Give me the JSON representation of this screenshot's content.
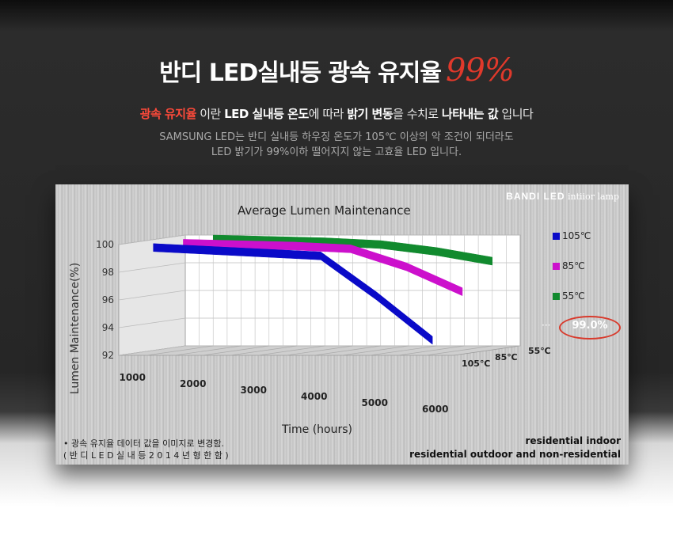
{
  "header": {
    "title": "반디 LED실내등 광속 유지율",
    "title_accent": "99%",
    "sub_red": "광속 유지율",
    "sub_t1": " 이란 ",
    "sub_b1": "LED 실내등 온도",
    "sub_t2": "에 따라 ",
    "sub_b2": "밝기 변동",
    "sub_t3": "을 수치로 ",
    "sub_b3": "나타내는 값",
    "sub_t4": " 입니다",
    "desc_line1": "SAMSUNG LED는 반디 실내등 하우징 온도가 105℃ 이상의 악 조건이 되더라도",
    "desc_line2": "LED 밝기가 99%이하 떨어지지 않는 고효율 LED 입니다."
  },
  "panel": {
    "brand_bold": "BANDI LED",
    "brand_rest": " intiior lamp",
    "highlight": "99.0%",
    "note_line1": "• 광속 유지율 데이터 값을 이미지로 변경함.",
    "note_line2": "( 반 디  L E D 실 내 등  2 0 1 4 년 형  한 함 )",
    "res_line1": "residential indoor",
    "res_line2": "residential outdoor and non-residential"
  },
  "chart_data": {
    "type": "line",
    "title": "Average Lumen Maintenance",
    "xlabel": "Time (hours)",
    "ylabel": "Lumen Maintenance(%)",
    "x": [
      1000,
      2000,
      3000,
      4000,
      5000,
      6000
    ],
    "ylim": [
      92,
      100
    ],
    "yticks": [
      100,
      98,
      96,
      94,
      92
    ],
    "depth_labels": [
      "55℃",
      "85℃",
      "105℃"
    ],
    "grid": true,
    "legend_position": "right",
    "series": [
      {
        "name": "105℃",
        "color": "#0a0ac8",
        "values": [
          100,
          99.8,
          99.6,
          99.4,
          96.5,
          93.3
        ]
      },
      {
        "name": "85℃",
        "color": "#cc10cc",
        "values": [
          100,
          99.9,
          99.8,
          99.6,
          98.3,
          96.5
        ]
      },
      {
        "name": "55℃",
        "color": "#118a2e",
        "values": [
          100,
          99.9,
          99.8,
          99.6,
          99.1,
          98.4
        ]
      }
    ]
  }
}
